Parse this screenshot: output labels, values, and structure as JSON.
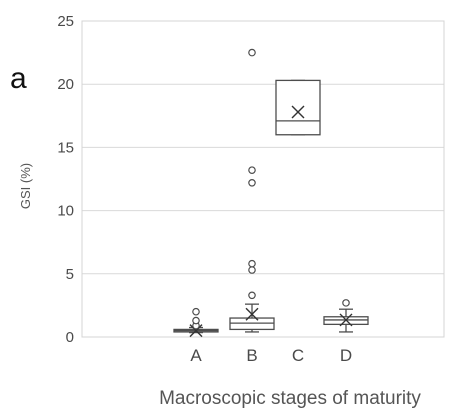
{
  "chart_data": {
    "type": "boxplot",
    "panel_label": "a",
    "xlabel": "Macroscopic stages of maturity",
    "ylabel": "GSI (%)",
    "ylim": [
      0,
      25
    ],
    "yticks": [
      "0",
      "5",
      "10",
      "15",
      "20",
      "25"
    ],
    "grid": true,
    "categories": [
      "A",
      "B",
      "C",
      "D"
    ],
    "boxes": [
      {
        "category": "A",
        "whisker_low": 0.35,
        "q1": 0.4,
        "median": 0.5,
        "q3": 0.6,
        "whisker_high": 0.75,
        "mean": 0.5,
        "outliers": [
          0.9,
          1.3,
          2.0
        ]
      },
      {
        "category": "B",
        "whisker_low": 0.4,
        "q1": 0.6,
        "median": 1.1,
        "q3": 1.5,
        "whisker_high": 2.6,
        "mean": 1.8,
        "outliers": [
          3.3,
          5.3,
          5.8,
          12.2,
          13.2,
          22.5
        ]
      },
      {
        "category": "C",
        "whisker_low": 16.0,
        "q1": 16.0,
        "median": 17.1,
        "q3": 20.3,
        "whisker_high": 20.3,
        "mean": 17.8,
        "outliers": []
      },
      {
        "category": "D",
        "whisker_low": 0.4,
        "q1": 1.0,
        "median": 1.35,
        "q3": 1.6,
        "whisker_high": 2.2,
        "mean": 1.35,
        "outliers": [
          2.7
        ]
      }
    ]
  }
}
